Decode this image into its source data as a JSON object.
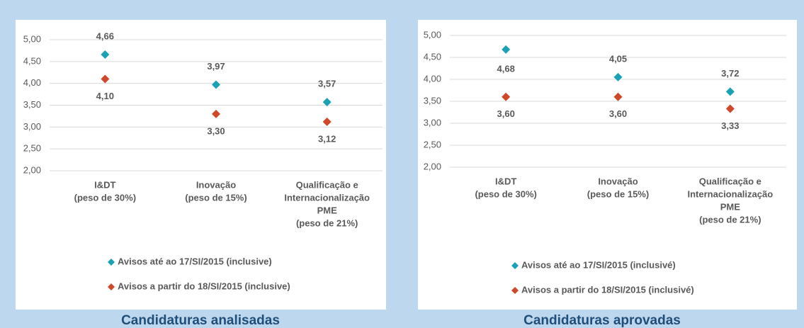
{
  "chart_data": [
    {
      "type": "point",
      "caption": "Candidaturas analisadas",
      "categories": [
        [
          "I&DT",
          "(peso de 30%)"
        ],
        [
          "Inovação",
          "(peso de 15%)"
        ],
        [
          "Qualificação e",
          "Internacionalização",
          "PME",
          "(peso de 21%)"
        ]
      ],
      "series": [
        {
          "name": "Avisos até ao 17/SI/2015 (inclusive)",
          "color": "#1ba1b5",
          "values": [
            4.66,
            3.97,
            3.57
          ],
          "value_labels": [
            "4,66",
            "3,97",
            "3,57"
          ]
        },
        {
          "name": "Avisos a partir do 18/SI/2015 (inclusive)",
          "color": "#d0482a",
          "values": [
            4.1,
            3.3,
            3.12
          ],
          "value_labels": [
            "4,10",
            "3,30",
            "3,12"
          ]
        }
      ],
      "ylim": [
        2,
        5
      ],
      "yticks": [
        {
          "value": 2,
          "label": "2,00"
        },
        {
          "value": 2.5,
          "label": "2,50"
        },
        {
          "value": 3,
          "label": "3,00"
        },
        {
          "value": 3.5,
          "label": "3,50"
        },
        {
          "value": 4,
          "label": "4,00"
        },
        {
          "value": 4.5,
          "label": "4,50"
        },
        {
          "value": 5,
          "label": "5,00"
        }
      ],
      "grid": true
    },
    {
      "type": "point",
      "caption": "Candidaturas aprovadas",
      "categories": [
        [
          "I&DT",
          "(peso de 30%)"
        ],
        [
          "Inovação",
          "(peso de 15%)"
        ],
        [
          "Qualificação e",
          "Internacionalização",
          "PME",
          "(peso de 21%)"
        ]
      ],
      "series": [
        {
          "name": "Avisos até ao 17/SI/2015 (inclusivé)",
          "color": "#1ba1b5",
          "values": [
            4.68,
            4.05,
            3.72
          ],
          "value_labels": [
            "4,68",
            "4,05",
            "3,72"
          ]
        },
        {
          "name": "Avisos a partir do 18/SI/2015 (inclusivé)",
          "color": "#d0482a",
          "values": [
            3.6,
            3.6,
            3.33
          ],
          "value_labels": [
            "3,60",
            "3,60",
            "3,33"
          ]
        }
      ],
      "ylim": [
        2,
        5
      ],
      "yticks": [
        {
          "value": 2,
          "label": "2,00"
        },
        {
          "value": 2.5,
          "label": "2,50"
        },
        {
          "value": 3,
          "label": "3,00"
        },
        {
          "value": 3.5,
          "label": "3,50"
        },
        {
          "value": 4,
          "label": "4,00"
        },
        {
          "value": 4.5,
          "label": "4,50"
        },
        {
          "value": 5,
          "label": "5,00"
        }
      ],
      "grid": true
    }
  ]
}
